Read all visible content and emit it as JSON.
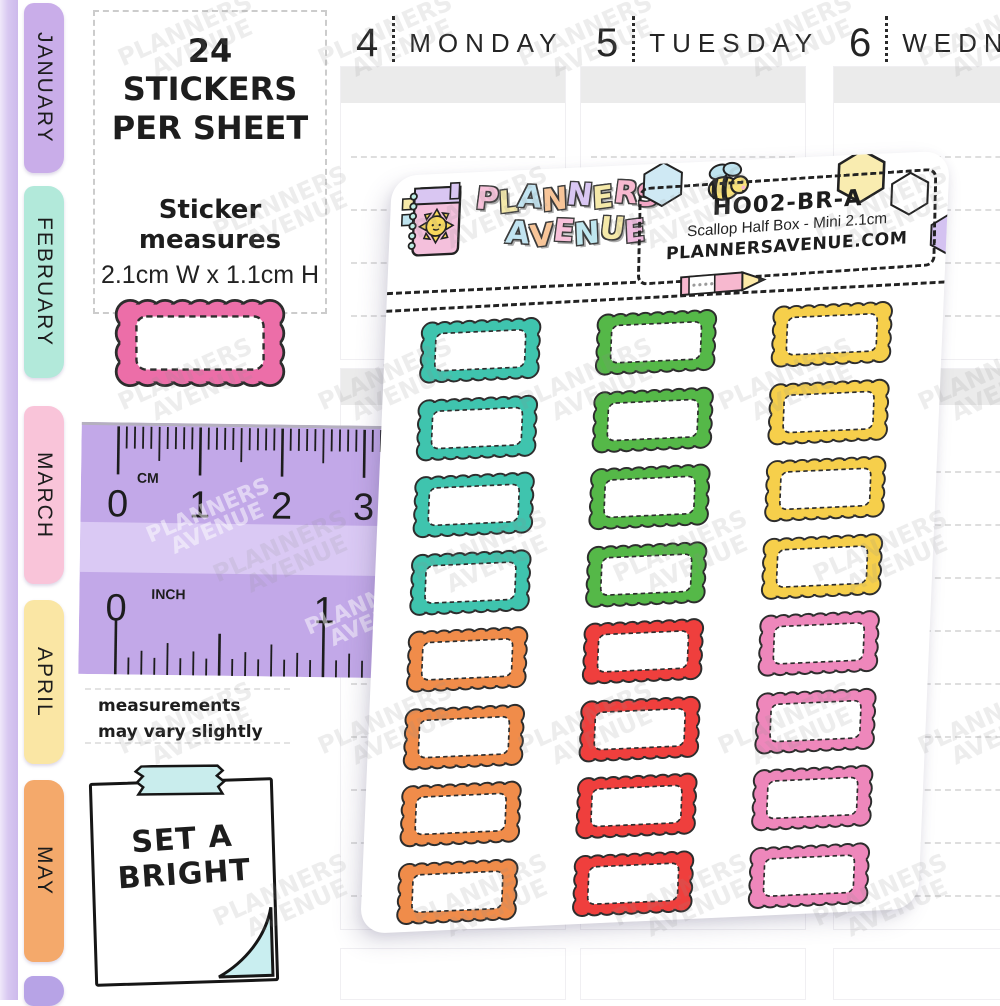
{
  "title_box": {
    "line1": "24 STICKERS",
    "line2": "PER SHEET",
    "measures_label": "Sticker measures",
    "measures_value": "2.1cm W  x  1.1cm H"
  },
  "month_tabs": [
    {
      "label": "JANUARY",
      "color": "#c9ade9"
    },
    {
      "label": "FEBRUARY",
      "color": "#b2e9da"
    },
    {
      "label": "MARCH",
      "color": "#f9c4d9"
    },
    {
      "label": "APRIL",
      "color": "#fae6a4"
    },
    {
      "label": "MAY",
      "color": "#f4a96b"
    },
    {
      "label": "",
      "color": "#b7a3e6"
    }
  ],
  "planner_days": [
    {
      "number": "4",
      "name": "MONDAY"
    },
    {
      "number": "5",
      "name": "TUESDAY"
    },
    {
      "number": "6",
      "name": "WEDNE"
    }
  ],
  "ruler": {
    "cm_unit": "CM",
    "inch_unit": "INCH",
    "cm_numbers": [
      "0",
      "1",
      "2",
      "3"
    ],
    "inch_numbers": [
      "0",
      "1"
    ],
    "body_color": "#c2a8e8",
    "band_color": "#dac9f4"
  },
  "disclaimer": {
    "line1": "measurements",
    "line2": "may vary slightly"
  },
  "sticky_note": {
    "line1": "SET A",
    "line2": "BRIGHT",
    "tape_color": "#c9eded",
    "fold_color": "#c9eef0"
  },
  "sheet": {
    "brand": {
      "line1": "PLANNERS",
      "line2": "AVENUE",
      "letter_colors_line1": [
        "#f7c1da",
        "#f5e9a9",
        "#c2e4f1",
        "#f7c599",
        "#d9c7f3",
        "#f5e9a9",
        "#f8b9d0",
        "#f4a7c6"
      ],
      "letter_colors_line2": [
        "#c2e4f1",
        "#f7c599",
        "#f7c1da",
        "#bfe7ef",
        "#f5e9a9",
        "#eebade"
      ]
    },
    "sku": "HO02-BR-A",
    "product_name": "Scallop Half Box - Mini 2.1cm",
    "website": "PLANNERSAVENUE.COM",
    "palette": {
      "teal": "#3fc4ae",
      "green": "#55b848",
      "yellow": "#f6cf4b",
      "orange": "#f08c4a",
      "red": "#ef3f3d",
      "pink": "#ee87bb"
    },
    "grid_rows": [
      [
        "teal",
        "green",
        "yellow"
      ],
      [
        "teal",
        "green",
        "yellow"
      ],
      [
        "teal",
        "green",
        "yellow"
      ],
      [
        "teal",
        "green",
        "yellow"
      ],
      [
        "orange",
        "red",
        "pink"
      ],
      [
        "orange",
        "red",
        "pink"
      ],
      [
        "orange",
        "red",
        "pink"
      ],
      [
        "orange",
        "red",
        "pink"
      ]
    ]
  },
  "sample_sticker_color": "#ec6ea8",
  "watermark": {
    "line1": "PLANNERS",
    "line2": "AVENUE"
  }
}
